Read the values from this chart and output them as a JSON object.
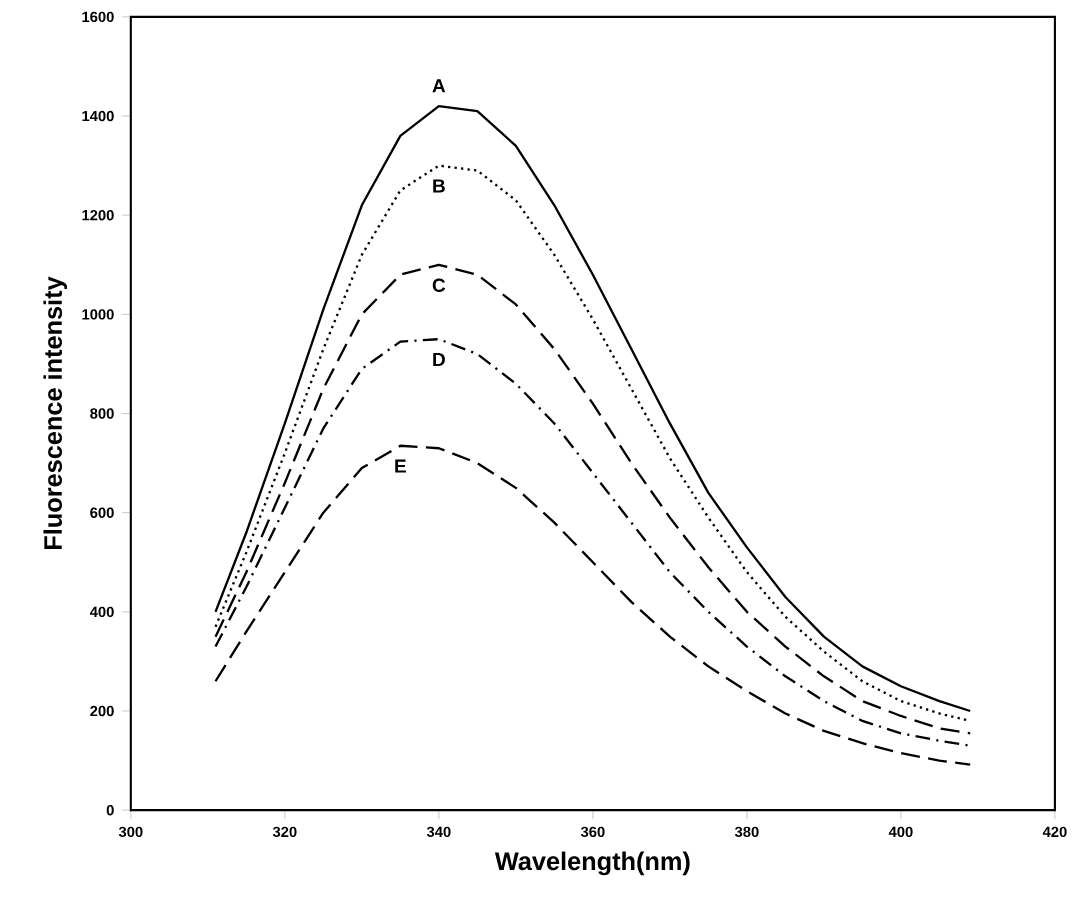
{
  "chart_data": {
    "type": "line",
    "xlabel": "Wavelength(nm)",
    "ylabel": "Fluorescence intensity",
    "x": [
      311,
      315,
      320,
      325,
      330,
      335,
      340,
      345,
      350,
      355,
      360,
      365,
      370,
      375,
      380,
      385,
      390,
      395,
      400,
      405,
      409
    ],
    "series": [
      {
        "name": "A",
        "color": "#000000",
        "line_style": "solid",
        "values": [
          400,
          560,
          780,
          1010,
          1220,
          1360,
          1420,
          1410,
          1340,
          1220,
          1080,
          930,
          780,
          640,
          530,
          430,
          350,
          290,
          250,
          220,
          200
        ]
      },
      {
        "name": "B",
        "color": "#000000",
        "line_style": "dotted",
        "values": [
          370,
          520,
          720,
          930,
          1120,
          1250,
          1300,
          1290,
          1230,
          1120,
          990,
          850,
          710,
          590,
          480,
          390,
          320,
          260,
          220,
          195,
          180
        ]
      },
      {
        "name": "C",
        "color": "#000000",
        "line_style": "dashed",
        "values": [
          350,
          480,
          660,
          850,
          1000,
          1080,
          1100,
          1080,
          1020,
          930,
          820,
          700,
          590,
          490,
          400,
          330,
          270,
          220,
          190,
          165,
          155
        ]
      },
      {
        "name": "D",
        "color": "#000000",
        "line_style": "dashdot",
        "values": [
          330,
          450,
          610,
          770,
          890,
          945,
          950,
          920,
          860,
          780,
          680,
          580,
          480,
          400,
          330,
          270,
          220,
          180,
          155,
          140,
          130
        ]
      },
      {
        "name": "E",
        "color": "#000000",
        "line_style": "dashed",
        "values": [
          260,
          360,
          480,
          600,
          690,
          735,
          730,
          700,
          650,
          580,
          500,
          420,
          350,
          290,
          240,
          195,
          160,
          135,
          115,
          100,
          92
        ]
      }
    ],
    "xlim": [
      300,
      420
    ],
    "xticks": [
      300,
      320,
      340,
      360,
      380,
      400,
      420
    ],
    "ylim": [
      0,
      1600
    ],
    "yticks": [
      0,
      200,
      400,
      600,
      800,
      1000,
      1200,
      1400,
      1600
    ],
    "grid": false,
    "marker": "none"
  }
}
